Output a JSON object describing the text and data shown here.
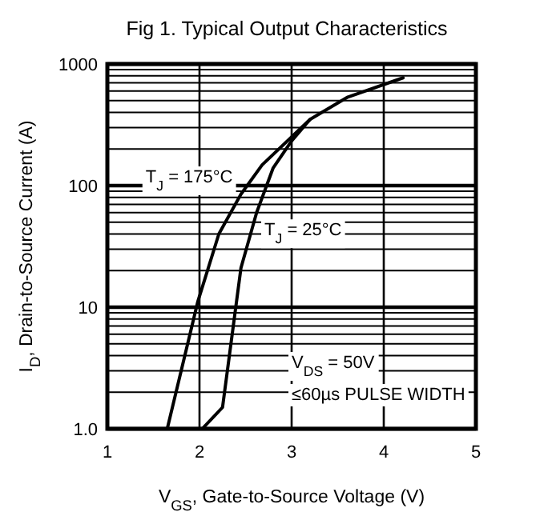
{
  "chart_data": {
    "type": "line",
    "title": "Fig 1.  Typical Output Characteristics",
    "xlabel": "V$_{GS}$, Gate-to-Source Voltage (V)",
    "ylabel": "I$_{D}$, Drain-to-Source Current (A)",
    "series": [
      {
        "color": "#000000",
        "x": [
          1.65,
          1.98,
          2.21,
          2.45,
          2.68,
          3.2,
          3.61,
          4.21
        ],
        "values": [
          1,
          11,
          40,
          85,
          148,
          350,
          535,
          770
        ]
      },
      {
        "color": "#000000",
        "x": [
          2.03,
          2.25,
          2.45,
          2.62,
          2.8,
          3.0,
          3.2
        ],
        "values": [
          1,
          1.5,
          21,
          60,
          140,
          233,
          350
        ]
      }
    ],
    "annotations": [
      {
        "text": "T$_{J}$ = 175°C",
        "x": 2.5,
        "y": 120
      },
      {
        "text": "T$_{J}$ = 25°C",
        "x": 2.6,
        "y": 44
      },
      "V$_{DS}$ = 50V",
      "≤60µs PULSE WIDTH"
    ],
    "xlim": [
      1,
      5
    ],
    "xticks": [
      1,
      2,
      3,
      4,
      5
    ],
    "ylim": [
      1,
      1000
    ],
    "yticks": [
      {
        "value": 1,
        "label": "1.0"
      },
      {
        "value": 2,
        "label": null
      },
      {
        "value": 3,
        "label": null
      },
      {
        "value": 4,
        "label": null
      },
      {
        "value": 5,
        "label": null
      },
      {
        "value": 6,
        "label": null
      },
      {
        "value": 7,
        "label": null
      },
      {
        "value": 8,
        "label": null
      },
      {
        "value": 9,
        "label": null
      },
      10,
      {
        "value": 20,
        "label": null
      },
      {
        "value": 30,
        "label": null
      },
      {
        "value": 40,
        "label": null
      },
      {
        "value": 50,
        "label": null
      },
      {
        "value": 60,
        "label": null
      },
      {
        "value": 70,
        "label": null
      },
      {
        "value": 80,
        "label": null
      },
      {
        "value": 90,
        "label": null
      },
      100,
      {
        "value": 200,
        "label": null
      },
      {
        "value": 300,
        "label": null
      },
      {
        "value": 400,
        "label": null
      },
      {
        "value": 500,
        "label": null
      },
      {
        "value": 600,
        "label": null
      },
      {
        "value": 700,
        "label": null
      },
      {
        "value": 800,
        "label": null
      },
      {
        "value": 900,
        "label": null
      },
      1000
    ],
    "log": true,
    "grid": true,
    "marker": "none",
    "line_style": "solid"
  }
}
